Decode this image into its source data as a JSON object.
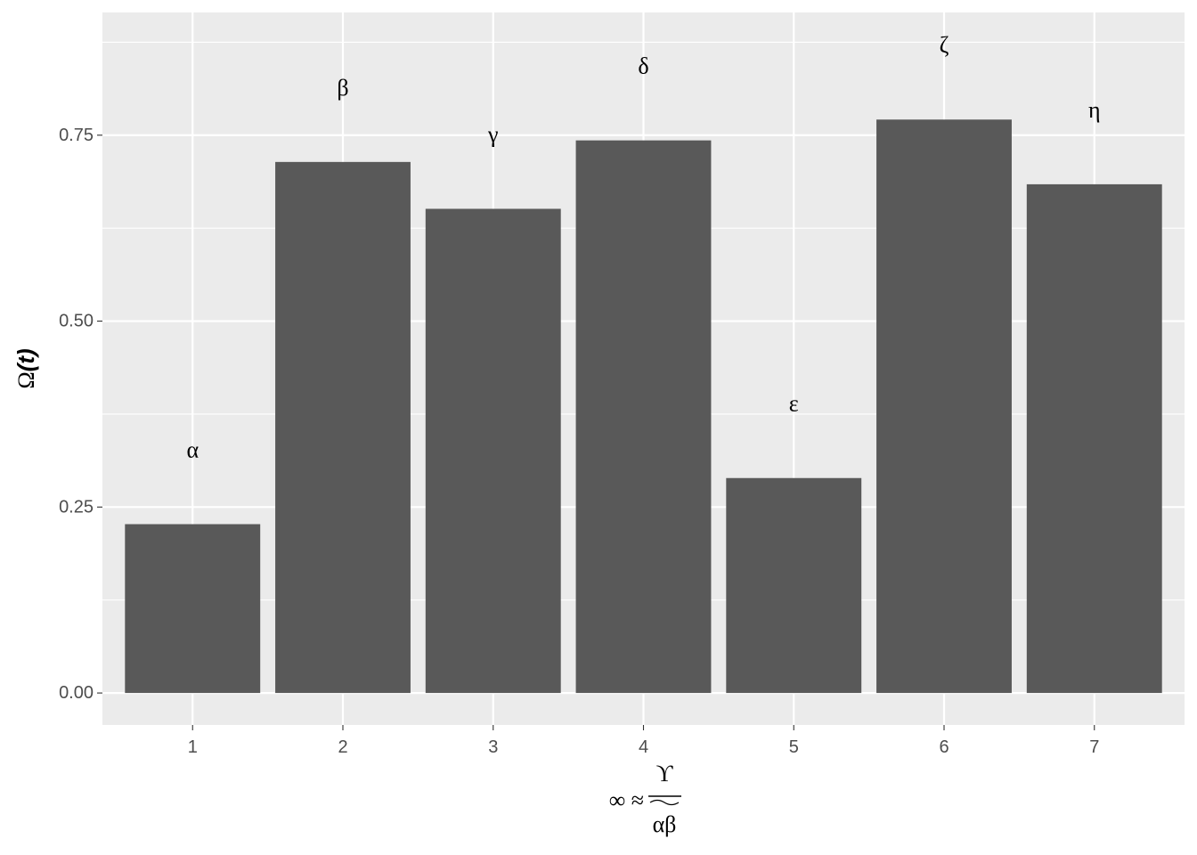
{
  "chart_data": {
    "type": "bar",
    "categories": [
      "1",
      "2",
      "3",
      "4",
      "5",
      "6",
      "7"
    ],
    "values": [
      0.227,
      0.714,
      0.651,
      0.743,
      0.289,
      0.771,
      0.684
    ],
    "bar_labels": [
      "α",
      "β",
      "γ",
      "δ",
      "ε",
      "ζ",
      "η"
    ],
    "label_offset": 0.1,
    "ylim": [
      -0.043,
      0.915
    ],
    "yticks": [
      0.0,
      0.25,
      0.5,
      0.75
    ],
    "ytick_labels": [
      "0.00",
      "0.25",
      "0.50",
      "0.75"
    ],
    "xlabel_parts": {
      "left": "∞ ≈",
      "numerator": "ϒ",
      "denominator": "αβ"
    },
    "ylabel_parts": {
      "omega": "Ω",
      "open": "(",
      "t": "t",
      "close": ")"
    },
    "grid": true,
    "colors": {
      "panel": "#ebebeb",
      "grid_major": "#ffffff",
      "bar": "#595959",
      "tick": "#333333"
    }
  }
}
